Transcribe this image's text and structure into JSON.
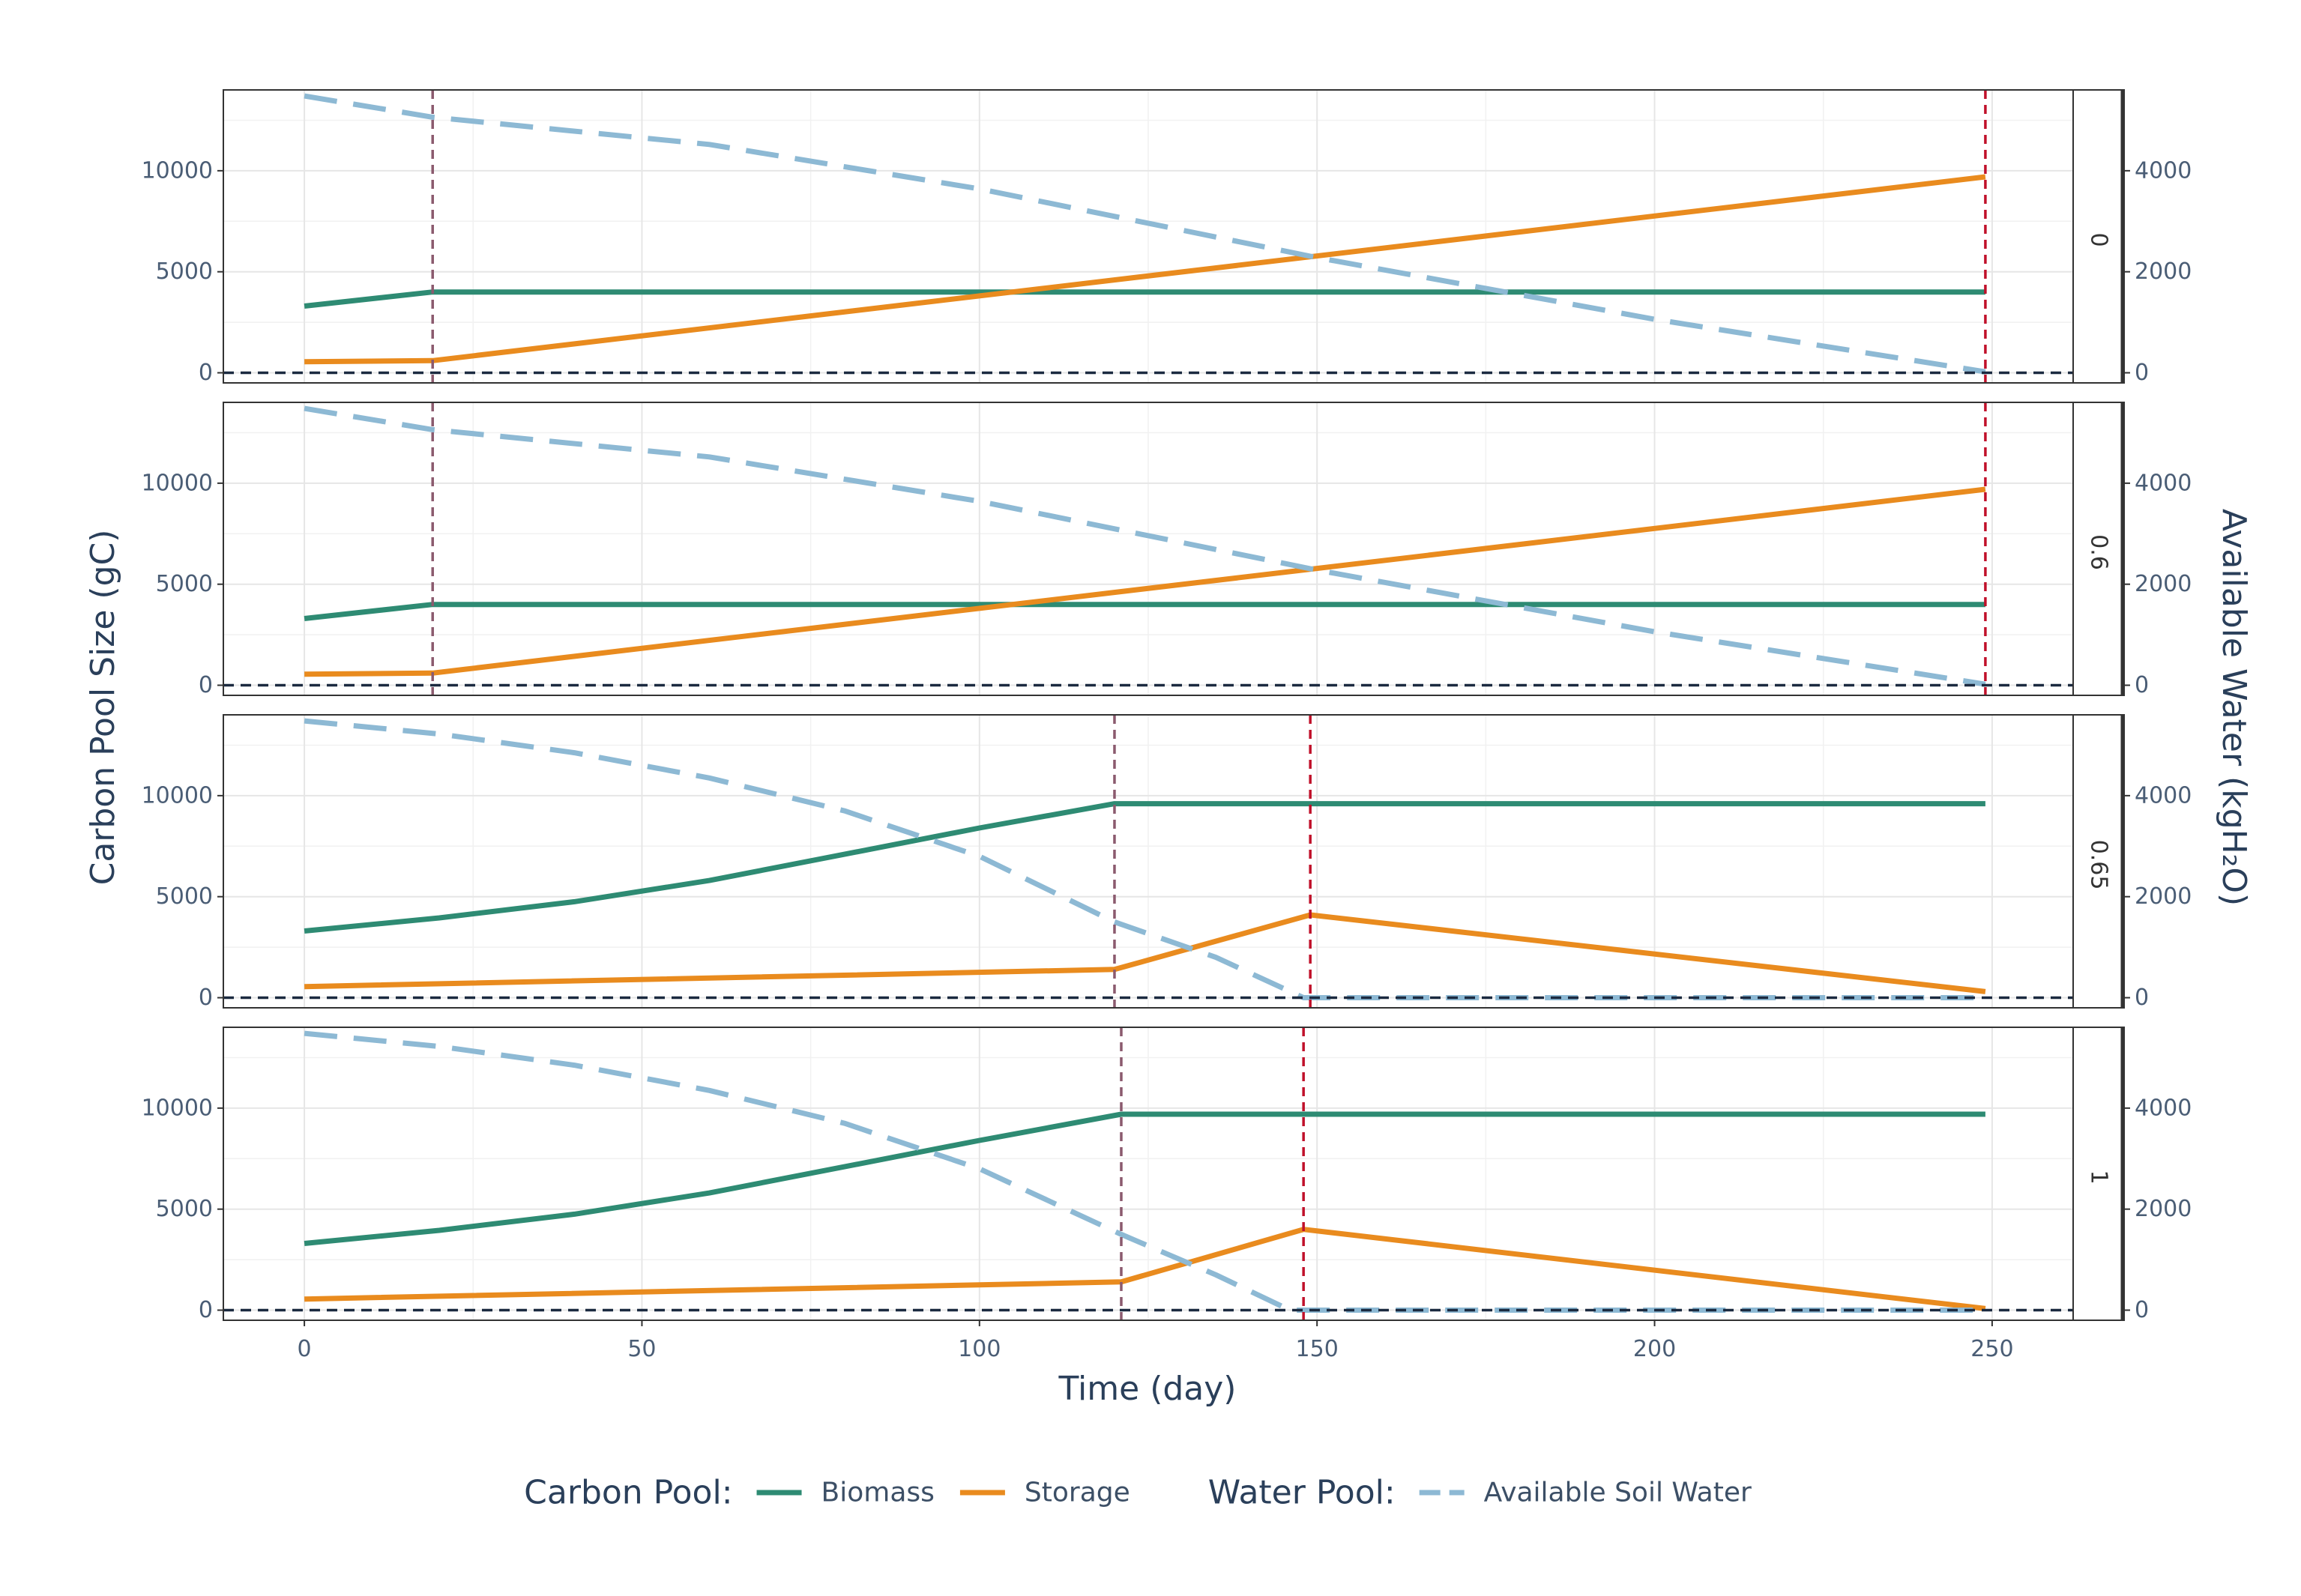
{
  "chart_data": {
    "type": "line",
    "xlabel": "Time (day)",
    "ylabel": "Carbon Pool Size (gC)",
    "ylabel_right": "Available Water (kgH₂O)",
    "xlim": [
      -12,
      262
    ],
    "ylim": [
      -500,
      14000
    ],
    "ylim_right": [
      -200,
      5600
    ],
    "x_ticks": [
      0,
      50,
      100,
      150,
      200,
      250
    ],
    "y_ticks": [
      0,
      5000,
      10000
    ],
    "y_ticks_right": [
      0,
      2000,
      4000
    ],
    "grid": true,
    "legend": {
      "position": "bottom",
      "groups": [
        {
          "title": "Carbon Pool:",
          "items": [
            {
              "label": "Biomass",
              "color": "#2e8b73",
              "dashed": false
            },
            {
              "label": "Storage",
              "color": "#e98b1e",
              "dashed": false
            }
          ]
        },
        {
          "title": "Water Pool:",
          "items": [
            {
              "label": "Available Soil Water",
              "color": "#8db9d4",
              "dashed": true
            }
          ]
        }
      ]
    },
    "colors": {
      "biomass": "#2e8b73",
      "storage": "#e98b1e",
      "water": "#8db9d4",
      "vline_phase": "#8b5a6e",
      "vline_end": "#c0102a",
      "zero_line": "#1b2a40",
      "grid": "#e6e6e6",
      "strip": "#333333"
    },
    "panels": [
      {
        "strip": "0",
        "vlines": [
          {
            "x": 19,
            "kind": "phase"
          },
          {
            "x": 249,
            "kind": "end"
          }
        ],
        "series": [
          {
            "name": "Biomass",
            "axis": "left",
            "x": [
              0,
              19,
              249
            ],
            "y": [
              3300,
              4000,
              4000
            ]
          },
          {
            "name": "Storage",
            "axis": "left",
            "x": [
              0,
              19,
              249
            ],
            "y": [
              550,
              600,
              9700
            ]
          },
          {
            "name": "Available Soil Water",
            "axis": "right",
            "x": [
              0,
              19,
              60,
              100,
              150,
              200,
              249
            ],
            "y": [
              5480,
              5060,
              4520,
              3640,
              2280,
              1060,
              20
            ]
          }
        ]
      },
      {
        "strip": "0.6",
        "vlines": [
          {
            "x": 19,
            "kind": "phase"
          },
          {
            "x": 249,
            "kind": "end"
          }
        ],
        "series": [
          {
            "name": "Biomass",
            "axis": "left",
            "x": [
              0,
              19,
              249
            ],
            "y": [
              3300,
              4000,
              4000
            ]
          },
          {
            "name": "Storage",
            "axis": "left",
            "x": [
              0,
              19,
              249
            ],
            "y": [
              550,
              600,
              9700
            ]
          },
          {
            "name": "Available Soil Water",
            "axis": "right",
            "x": [
              0,
              19,
              60,
              100,
              150,
              200,
              249
            ],
            "y": [
              5480,
              5060,
              4520,
              3640,
              2280,
              1060,
              20
            ]
          }
        ]
      },
      {
        "strip": "0.65",
        "vlines": [
          {
            "x": 120,
            "kind": "phase"
          },
          {
            "x": 149,
            "kind": "end"
          }
        ],
        "series": [
          {
            "name": "Biomass",
            "axis": "left",
            "x": [
              0,
              20,
              40,
              60,
              80,
              100,
              120,
              249
            ],
            "y": [
              3300,
              3950,
              4750,
              5800,
              7100,
              8400,
              9600,
              9600
            ]
          },
          {
            "name": "Storage",
            "axis": "left",
            "x": [
              0,
              120,
              149,
              249
            ],
            "y": [
              550,
              1400,
              4100,
              300
            ]
          },
          {
            "name": "Available Soil Water",
            "axis": "right",
            "x": [
              0,
              20,
              40,
              60,
              80,
              100,
              120,
              135,
              148,
              249
            ],
            "y": [
              5480,
              5220,
              4850,
              4350,
              3700,
              2800,
              1500,
              800,
              0,
              0
            ]
          }
        ]
      },
      {
        "strip": "1",
        "vlines": [
          {
            "x": 121,
            "kind": "phase"
          },
          {
            "x": 148,
            "kind": "end"
          }
        ],
        "series": [
          {
            "name": "Biomass",
            "axis": "left",
            "x": [
              0,
              20,
              40,
              60,
              80,
              100,
              121,
              249
            ],
            "y": [
              3300,
              3950,
              4750,
              5800,
              7100,
              8400,
              9700,
              9700
            ]
          },
          {
            "name": "Storage",
            "axis": "left",
            "x": [
              0,
              121,
              148,
              249
            ],
            "y": [
              550,
              1400,
              4000,
              80
            ]
          },
          {
            "name": "Available Soil Water",
            "axis": "right",
            "x": [
              0,
              20,
              40,
              60,
              80,
              100,
              121,
              135,
              146,
              249
            ],
            "y": [
              5480,
              5220,
              4850,
              4350,
              3700,
              2800,
              1500,
              700,
              0,
              0
            ]
          }
        ]
      }
    ]
  }
}
